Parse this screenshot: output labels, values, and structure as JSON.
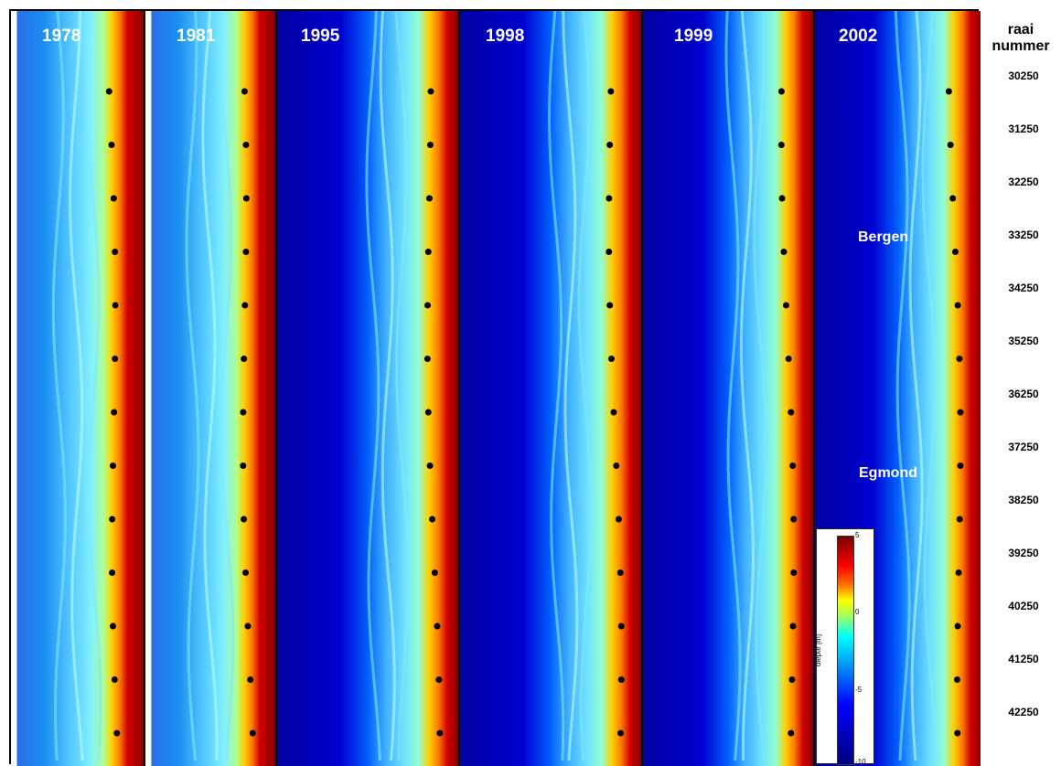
{
  "panels": [
    {
      "year": "1978"
    },
    {
      "year": "1981"
    },
    {
      "year": "1995"
    },
    {
      "year": "1998"
    },
    {
      "year": "1999"
    },
    {
      "year": "2002"
    }
  ],
  "places": {
    "bergen": "Bergen",
    "egmond": "Egmond"
  },
  "raai": {
    "title_line1": "raai",
    "title_line2": "nummer",
    "numbers": [
      "30250",
      "31250",
      "32250",
      "33250",
      "34250",
      "35250",
      "36250",
      "37250",
      "38250",
      "39250",
      "40250",
      "41250",
      "42250"
    ]
  },
  "colorbar": {
    "label": "diepte [m]",
    "ticks": [
      "5",
      "0",
      "-5",
      "-10"
    ]
  },
  "colors": {
    "deep": "#0000a0",
    "shallow": "#1a8ff0",
    "bar": "#00e0ff",
    "shore": "#ffd000",
    "dune": "#d00000"
  }
}
